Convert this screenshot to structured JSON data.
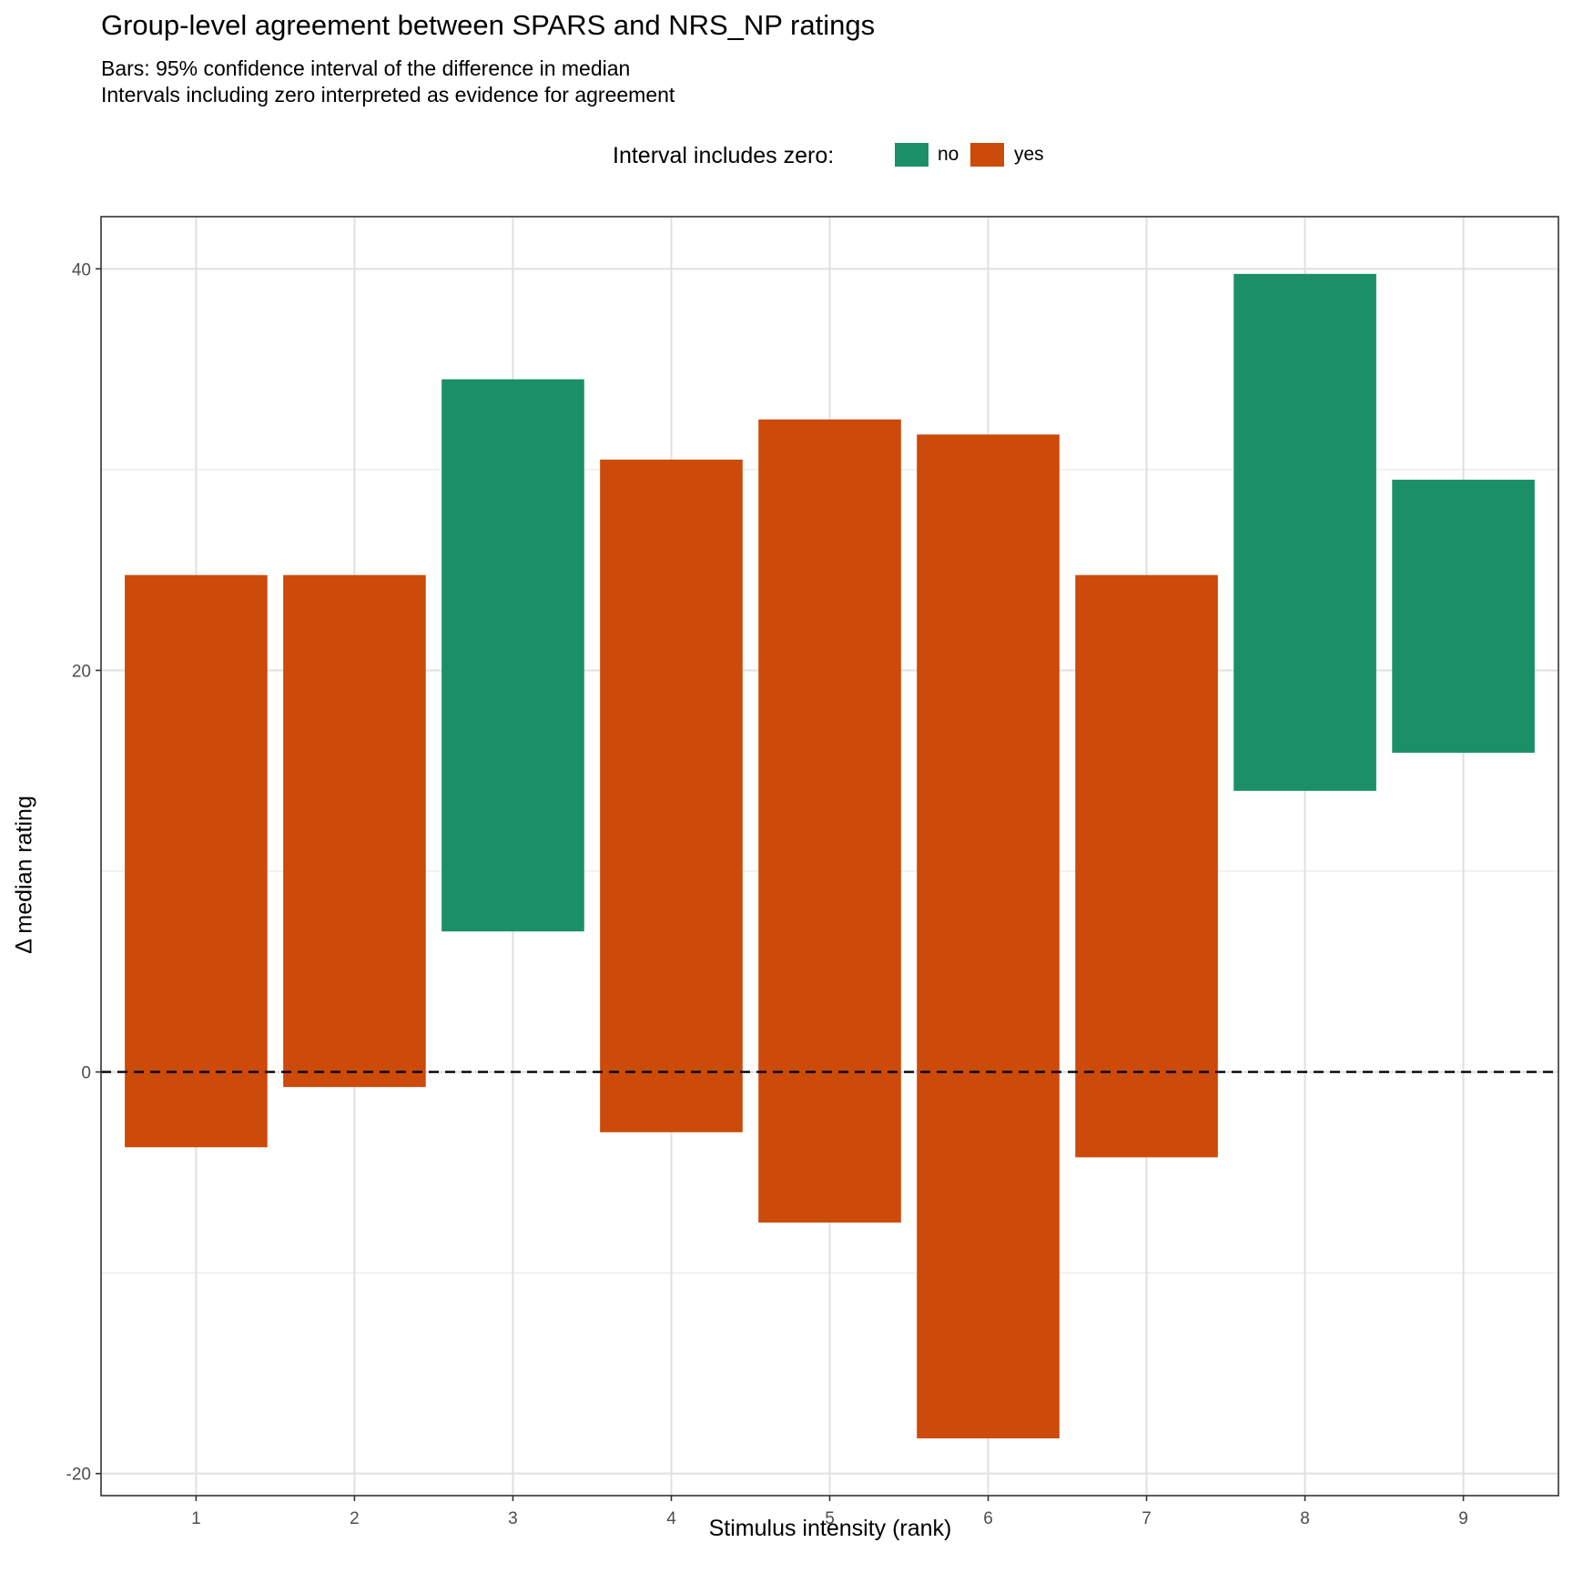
{
  "title": "Group-level agreement between SPARS and NRS_NP ratings",
  "subtitle_line1": "Bars: 95% confidence interval of the difference in median",
  "subtitle_line2": "Intervals including zero interpreted as evidence for agreement",
  "legend": {
    "title": "Interval includes zero:",
    "items": [
      {
        "label": "no",
        "color": "#1b9068"
      },
      {
        "label": "yes",
        "color": "#cc4a0a"
      }
    ]
  },
  "chart_data": {
    "type": "bar",
    "subtype": "floating-range",
    "xlabel": "Stimulus intensity (rank)",
    "ylabel": "Δ median rating",
    "categories": [
      "1",
      "2",
      "3",
      "4",
      "5",
      "6",
      "7",
      "8",
      "9"
    ],
    "lower": [
      -3.75,
      -0.75,
      7.0,
      -3.0,
      -7.5,
      -18.25,
      -4.25,
      14.0,
      15.9
    ],
    "upper": [
      24.75,
      24.75,
      34.5,
      30.5,
      32.5,
      31.75,
      24.75,
      39.75,
      29.5
    ],
    "includes_zero": [
      "yes",
      "yes",
      "no",
      "yes",
      "yes",
      "yes",
      "yes",
      "no",
      "no"
    ],
    "ylim": [
      -21.1,
      42.6
    ],
    "yticks": [
      -20,
      0,
      20,
      40
    ],
    "reference_line": {
      "y": 0,
      "style": "dashed"
    },
    "grid": true,
    "legend_position": "top"
  }
}
